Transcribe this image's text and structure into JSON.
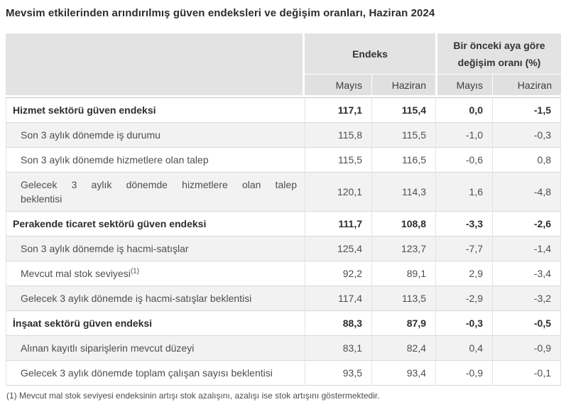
{
  "page": {
    "title": "Mevsim etkilerinden arındırılmış güven endeksleri ve değişim oranları, Haziran 2024",
    "footnote": "(1) Mevcut mal stok seviyesi endeksinin artışı stok azalışını, azalışı ise stok artışını göstermektedir."
  },
  "table": {
    "column_groups": [
      {
        "label": "Endeks"
      },
      {
        "label": "Bir önceki aya göre değişim oranı (%)"
      }
    ],
    "sub_headers": [
      "Mayıs",
      "Haziran",
      "Mayıs",
      "Haziran"
    ],
    "rows": [
      {
        "label": "Hizmet sektörü güven endeksi",
        "bold": true,
        "values": [
          "117,1",
          "115,4",
          "0,0",
          "-1,5"
        ]
      },
      {
        "label": "Son 3 aylık dönemde iş durumu",
        "bold": false,
        "values": [
          "115,8",
          "115,5",
          "-1,0",
          "-0,3"
        ]
      },
      {
        "label": "Son 3 aylık dönemde hizmetlere olan talep",
        "bold": false,
        "values": [
          "115,5",
          "116,5",
          "-0,6",
          "0,8"
        ]
      },
      {
        "label": "Gelecek 3 aylık dönemde hizmetlere olan talep beklentisi",
        "bold": false,
        "label_lines": [
          "Gelecek 3 aylık dönemde hizmetlere olan talep",
          "beklentisi"
        ],
        "values": [
          "120,1",
          "114,3",
          "1,6",
          "-4,8"
        ]
      },
      {
        "label": "Perakende ticaret sektörü güven endeksi",
        "bold": true,
        "values": [
          "111,7",
          "108,8",
          "-3,3",
          "-2,6"
        ]
      },
      {
        "label": "Son 3 aylık dönemde iş hacmi-satışlar",
        "bold": false,
        "values": [
          "125,4",
          "123,7",
          "-7,7",
          "-1,4"
        ]
      },
      {
        "label": "Mevcut mal stok seviyesi",
        "sup": "(1)",
        "bold": false,
        "values": [
          "92,2",
          "89,1",
          "2,9",
          "-3,4"
        ]
      },
      {
        "label": "Gelecek 3 aylık dönemde iş hacmi-satışlar beklentisi",
        "bold": false,
        "values": [
          "117,4",
          "113,5",
          "-2,9",
          "-3,2"
        ]
      },
      {
        "label": "İnşaat sektörü güven endeksi",
        "bold": true,
        "values": [
          "88,3",
          "87,9",
          "-0,3",
          "-0,5"
        ]
      },
      {
        "label": "Alınan kayıtlı siparişlerin mevcut düzeyi",
        "bold": false,
        "values": [
          "83,1",
          "82,4",
          "0,4",
          "-0,9"
        ]
      },
      {
        "label": "Gelecek 3 aylık dönemde toplam çalışan sayısı beklentisi",
        "bold": false,
        "values": [
          "93,5",
          "93,4",
          "-0,9",
          "-0,1"
        ]
      }
    ]
  },
  "chart_data": {
    "type": "table",
    "title": "Mevsim etkilerinden arındırılmış güven endeksleri ve değişim oranları, Haziran 2024",
    "column_groups": [
      "Endeks",
      "Bir önceki aya göre değişim oranı (%)"
    ],
    "columns": [
      "Endeks Mayıs",
      "Endeks Haziran",
      "Değişim oranı Mayıs (%)",
      "Değişim oranı Haziran (%)"
    ],
    "rows": [
      {
        "label": "Hizmet sektörü güven endeksi",
        "section": true,
        "values": [
          117.1,
          115.4,
          0.0,
          -1.5
        ]
      },
      {
        "label": "Son 3 aylık dönemde iş durumu",
        "section": false,
        "values": [
          115.8,
          115.5,
          -1.0,
          -0.3
        ]
      },
      {
        "label": "Son 3 aylık dönemde hizmetlere olan talep",
        "section": false,
        "values": [
          115.5,
          116.5,
          -0.6,
          0.8
        ]
      },
      {
        "label": "Gelecek 3 aylık dönemde hizmetlere olan talep beklentisi",
        "section": false,
        "values": [
          120.1,
          114.3,
          1.6,
          -4.8
        ]
      },
      {
        "label": "Perakende ticaret sektörü güven endeksi",
        "section": true,
        "values": [
          111.7,
          108.8,
          -3.3,
          -2.6
        ]
      },
      {
        "label": "Son 3 aylık dönemde iş hacmi-satışlar",
        "section": false,
        "values": [
          125.4,
          123.7,
          -7.7,
          -1.4
        ]
      },
      {
        "label": "Mevcut mal stok seviyesi (1)",
        "section": false,
        "values": [
          92.2,
          89.1,
          2.9,
          -3.4
        ]
      },
      {
        "label": "Gelecek 3 aylık dönemde iş hacmi-satışlar beklentisi",
        "section": false,
        "values": [
          117.4,
          113.5,
          -2.9,
          -3.2
        ]
      },
      {
        "label": "İnşaat sektörü güven endeksi",
        "section": true,
        "values": [
          88.3,
          87.9,
          -0.3,
          -0.5
        ]
      },
      {
        "label": "Alınan kayıtlı siparişlerin mevcut düzeyi",
        "section": false,
        "values": [
          83.1,
          82.4,
          0.4,
          -0.9
        ]
      },
      {
        "label": "Gelecek 3 aylık dönemde toplam çalışan sayısı beklentisi",
        "section": false,
        "values": [
          93.5,
          93.4,
          -0.9,
          -0.1
        ]
      }
    ],
    "footnote": "(1) Mevcut mal stok seviyesi endeksinin artışı stok azalışını, azalışı ise stok artışını göstermektedir."
  }
}
